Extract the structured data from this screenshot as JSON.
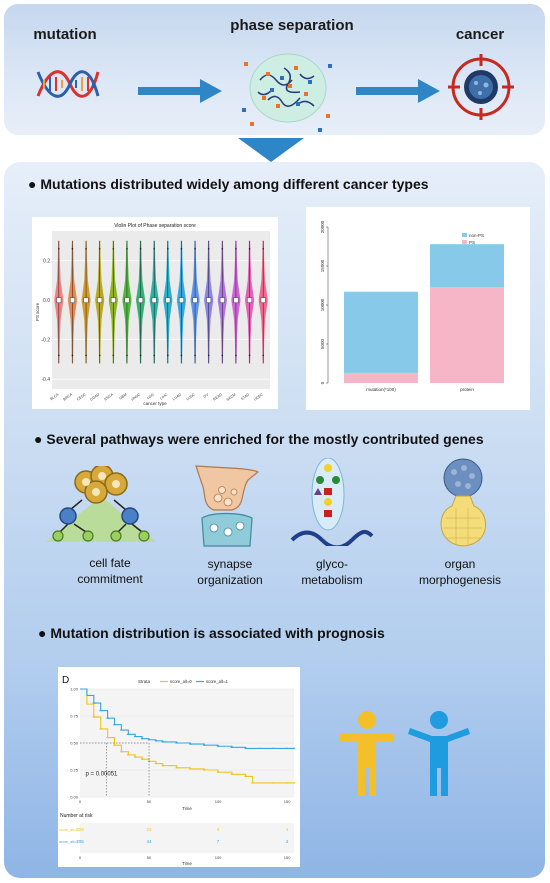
{
  "flow": {
    "step1": "mutation",
    "step2": "phase separation",
    "step3": "cancer"
  },
  "sections": {
    "s1": "Mutations distributed widely among different cancer types",
    "s2": "Several pathways were enriched for the mostly contributed genes",
    "s3": "Mutation distribution is associated with prognosis"
  },
  "pathways": [
    {
      "line1": "cell fate",
      "line2": "commitment"
    },
    {
      "line1": "synapse",
      "line2": "organization"
    },
    {
      "line1": "glyco-",
      "line2": "metabolism"
    },
    {
      "line1": "organ",
      "line2": "morphogenesis"
    }
  ],
  "chart_data": [
    {
      "type": "violin",
      "title": "Violin Plot of Phase separation score",
      "xlabel": "cancer type",
      "ylabel": "PS score",
      "ylim": [
        -0.45,
        0.35
      ],
      "yticks": [
        -0.4,
        -0.2,
        0.0,
        0.2
      ],
      "categories": [
        "BLCA",
        "BRCA",
        "CESC",
        "COAD",
        "ESCA",
        "GBM",
        "HNSC",
        "LGG",
        "LIHC",
        "LUAD",
        "LUSC",
        "OV",
        "READ",
        "SKCM",
        "STAD",
        "UCEC"
      ],
      "colors": [
        "#f08080",
        "#e8894a",
        "#d49a2e",
        "#b8a82a",
        "#8fb326",
        "#4fb83c",
        "#2cb579",
        "#2ab3a6",
        "#2cafc9",
        "#35a5e0",
        "#5d94ec",
        "#8b82ee",
        "#b070e6",
        "#cf62d6",
        "#e45fb6",
        "#ef6a92"
      ],
      "medians": [
        0.0,
        0.0,
        0.0,
        0.0,
        0.0,
        0.0,
        0.0,
        0.0,
        0.0,
        0.0,
        0.0,
        0.0,
        0.0,
        0.0,
        0.0,
        0.0
      ]
    },
    {
      "type": "bar",
      "stacked": true,
      "categories": [
        "mutation(*100)",
        "protein"
      ],
      "series": [
        {
          "name": "PS",
          "color": "#f7b6c8",
          "values": [
            1300,
            12300
          ]
        },
        {
          "name": "non-PS",
          "color": "#86c9e8",
          "values": [
            10400,
            5500
          ]
        }
      ],
      "ylim": [
        0,
        20000
      ],
      "yticks": [
        0,
        5000,
        10000,
        15000,
        20000
      ]
    },
    {
      "type": "line",
      "panel_label": "D",
      "legend_title": "Strata",
      "series": [
        {
          "name": "score_alt=0",
          "color": "#f2c21b",
          "x": [
            0,
            5,
            10,
            15,
            20,
            25,
            30,
            35,
            40,
            45,
            50,
            55,
            60,
            70,
            80,
            90,
            100,
            110,
            120,
            125,
            140,
            150,
            155
          ],
          "y": [
            1.0,
            0.86,
            0.74,
            0.63,
            0.55,
            0.48,
            0.42,
            0.39,
            0.37,
            0.35,
            0.33,
            0.31,
            0.29,
            0.27,
            0.26,
            0.25,
            0.23,
            0.21,
            0.19,
            0.13,
            0.13,
            0.13,
            0.13
          ]
        },
        {
          "name": "score_alt=1",
          "color": "#36a6e0",
          "x": [
            0,
            5,
            10,
            15,
            20,
            25,
            30,
            35,
            40,
            45,
            50,
            55,
            60,
            70,
            80,
            90,
            100,
            110,
            120,
            130,
            140,
            150,
            155
          ],
          "y": [
            1.0,
            0.94,
            0.87,
            0.8,
            0.73,
            0.67,
            0.62,
            0.58,
            0.56,
            0.54,
            0.53,
            0.52,
            0.51,
            0.5,
            0.49,
            0.48,
            0.47,
            0.46,
            0.45,
            0.45,
            0.45,
            0.45,
            0.45
          ]
        }
      ],
      "pvalue": "p = 0.00051",
      "xlabel": "Time",
      "xlim": [
        0,
        155
      ],
      "xticks": [
        0,
        50,
        100,
        150
      ],
      "ylim": [
        0,
        1
      ],
      "yticks": [
        "0.00",
        "0.25",
        "0.50",
        "0.75",
        "1.00"
      ],
      "risk_table": {
        "title": "Number at risk",
        "rows": [
          {
            "label": "score_alt=0",
            "values": [
              "209",
              "23",
              "4",
              "1"
            ]
          },
          {
            "label": "score_alt=1",
            "values": [
              "205",
              "44",
              "7",
              "2"
            ]
          }
        ],
        "xlabel": "Time"
      }
    }
  ]
}
